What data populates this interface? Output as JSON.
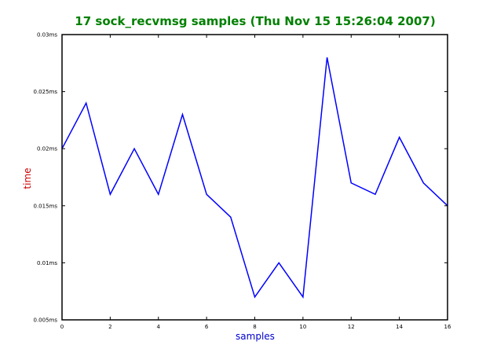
{
  "chart_data": {
    "type": "line",
    "title": "17 sock_recvmsg samples (Thu Nov 15 15:26:04 2007)",
    "xlabel": "samples",
    "ylabel": "time",
    "x": [
      0,
      1,
      2,
      3,
      4,
      5,
      6,
      7,
      8,
      9,
      10,
      11,
      12,
      13,
      14,
      15,
      16
    ],
    "series": [
      {
        "values": [
          0.02,
          0.024,
          0.016,
          0.02,
          0.016,
          0.023,
          0.016,
          0.014,
          0.007,
          0.01,
          0.007,
          0.028,
          0.017,
          0.016,
          0.021,
          0.017,
          0.015
        ],
        "color": "#0000ff"
      }
    ],
    "xlim": [
      0,
      16
    ],
    "ylim": [
      0.005,
      0.03
    ],
    "xticks": [
      0,
      2,
      4,
      6,
      8,
      10,
      12,
      14,
      16
    ],
    "xtick_labels": [
      "0",
      "2",
      "4",
      "6",
      "8",
      "10",
      "12",
      "14",
      "16"
    ],
    "yticks": [
      0.005,
      0.01,
      0.015,
      0.02,
      0.025,
      0.03
    ],
    "ytick_labels": [
      "0.005ms",
      "0.01ms",
      "0.015ms",
      "0.02ms",
      "0.025ms",
      "0.03ms"
    ],
    "grid": false,
    "title_color": "#008000",
    "xlabel_color": "#0000cc",
    "ylabel_color": "#cc0000"
  }
}
